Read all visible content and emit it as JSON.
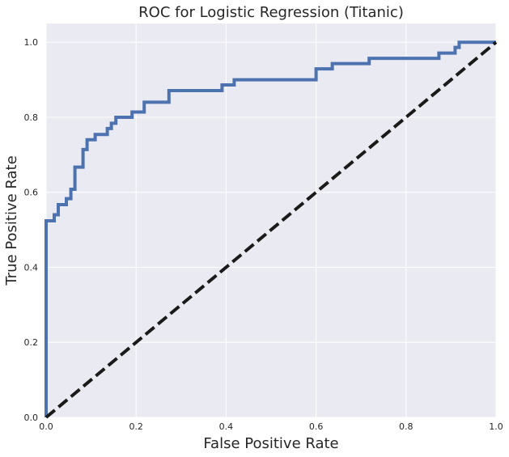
{
  "chart_data": {
    "type": "line",
    "title": "ROC for Logistic Regression (Titanic)",
    "xlabel": "False Positive Rate",
    "ylabel": "True Positive Rate",
    "xlim": [
      0.0,
      1.0
    ],
    "ylim": [
      0.0,
      1.05
    ],
    "xticks": [
      0.0,
      0.2,
      0.4,
      0.6,
      0.8,
      1.0
    ],
    "yticks": [
      0.0,
      0.2,
      0.4,
      0.6,
      0.8,
      1.0
    ],
    "xtick_labels": [
      "0.0",
      "0.2",
      "0.4",
      "0.6",
      "0.8",
      "1.0"
    ],
    "ytick_labels": [
      "0.0",
      "0.2",
      "0.4",
      "0.6",
      "0.8",
      "1.0"
    ],
    "grid": true,
    "series": [
      {
        "color": "#4c72b0",
        "style": "solid",
        "x": [
          0.0,
          0.0,
          0.018,
          0.018,
          0.027,
          0.027,
          0.045,
          0.045,
          0.055,
          0.055,
          0.064,
          0.064,
          0.082,
          0.082,
          0.091,
          0.091,
          0.109,
          0.109,
          0.136,
          0.136,
          0.145,
          0.145,
          0.155,
          0.155,
          0.191,
          0.191,
          0.218,
          0.218,
          0.273,
          0.273,
          0.391,
          0.391,
          0.418,
          0.418,
          0.6,
          0.6,
          0.636,
          0.636,
          0.718,
          0.718,
          0.873,
          0.873,
          0.909,
          0.909,
          0.918,
          0.918,
          1.0
        ],
        "y": [
          0.0,
          0.524,
          0.524,
          0.54,
          0.54,
          0.567,
          0.567,
          0.583,
          0.583,
          0.608,
          0.608,
          0.667,
          0.667,
          0.714,
          0.714,
          0.74,
          0.74,
          0.754,
          0.754,
          0.77,
          0.77,
          0.784,
          0.784,
          0.8,
          0.8,
          0.814,
          0.814,
          0.84,
          0.84,
          0.871,
          0.871,
          0.886,
          0.886,
          0.9,
          0.9,
          0.929,
          0.929,
          0.943,
          0.943,
          0.957,
          0.957,
          0.971,
          0.971,
          0.986,
          0.986,
          1.0,
          1.0
        ]
      },
      {
        "color": "#1a1a1a",
        "style": "dashed",
        "x": [
          0.0,
          1.0
        ],
        "y": [
          0.0,
          1.0
        ]
      }
    ]
  }
}
